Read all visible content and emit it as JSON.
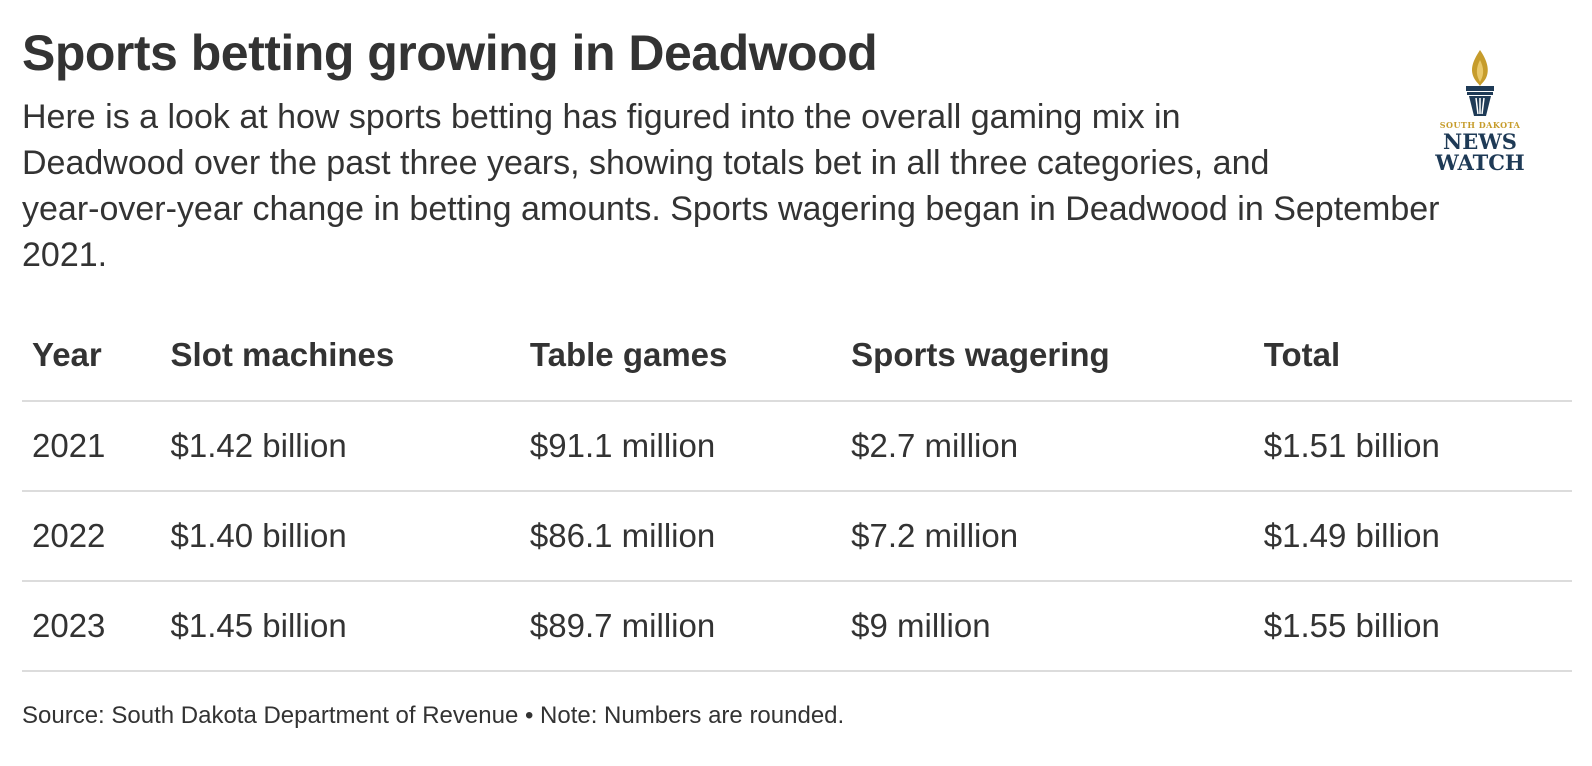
{
  "header": {
    "title": "Sports betting growing in Deadwood",
    "subtitle_lines": [
      "Here is a look at how sports betting has figured into the overall gaming mix in",
      "Deadwood over the past three years, showing totals bet in all three categories, and",
      "year-over-year change in betting amounts. Sports wagering began in Deadwood in September",
      "2021."
    ]
  },
  "logo": {
    "small_text": "SOUTH DAKOTA",
    "big_line1": "NEWS",
    "big_line2": "WATCH",
    "icon": "torch-icon",
    "colors": {
      "gold": "#c69c2b",
      "navy": "#1e3a56"
    }
  },
  "chart_data": {
    "type": "table",
    "columns": [
      "Year",
      "Slot machines",
      "Table games",
      "Sports wagering",
      "Total"
    ],
    "rows": [
      [
        "2021",
        "$1.42 billion",
        "$91.1 million",
        "$2.7 million",
        "$1.51 billion"
      ],
      [
        "2022",
        "$1.40 billion",
        "$86.1 million",
        "$7.2 million",
        "$1.49 billion"
      ],
      [
        "2023",
        "$1.45 billion",
        "$89.7 million",
        "$9 million",
        "$1.55 billion"
      ]
    ]
  },
  "footer": {
    "source": "Source: South Dakota Department of Revenue • Note: Numbers are rounded."
  }
}
